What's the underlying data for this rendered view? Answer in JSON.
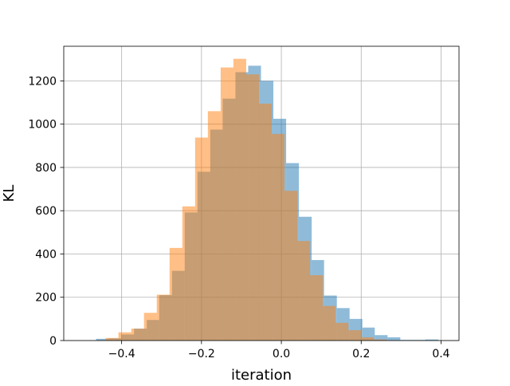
{
  "chart_data": {
    "type": "histogram",
    "title": "",
    "xlabel": "iteration",
    "ylabel": "KL",
    "xlim": [
      -0.545,
      0.445
    ],
    "ylim": [
      0,
      1360
    ],
    "x_ticks": [
      -0.4,
      -0.2,
      0.0,
      0.2,
      0.4
    ],
    "x_tick_labels": [
      "−0.4",
      "−0.2",
      "0.0",
      "0.2",
      "0.4"
    ],
    "y_ticks": [
      0,
      200,
      400,
      600,
      800,
      1000,
      1200
    ],
    "y_tick_labels": [
      "0",
      "200",
      "400",
      "600",
      "800",
      "1000",
      "1200"
    ],
    "grid": true,
    "legend": false,
    "series": [
      {
        "color": "#1f77b4",
        "alpha": 0.5,
        "bins": [
          {
            "x0": -0.464,
            "x1": -0.433,
            "count": 8
          },
          {
            "x0": -0.433,
            "x1": -0.401,
            "count": 10
          },
          {
            "x0": -0.401,
            "x1": -0.369,
            "count": 28
          },
          {
            "x0": -0.369,
            "x1": -0.337,
            "count": 55
          },
          {
            "x0": -0.337,
            "x1": -0.306,
            "count": 95
          },
          {
            "x0": -0.306,
            "x1": -0.274,
            "count": 210
          },
          {
            "x0": -0.274,
            "x1": -0.242,
            "count": 322
          },
          {
            "x0": -0.242,
            "x1": -0.21,
            "count": 592
          },
          {
            "x0": -0.21,
            "x1": -0.178,
            "count": 780
          },
          {
            "x0": -0.178,
            "x1": -0.147,
            "count": 975
          },
          {
            "x0": -0.147,
            "x1": -0.115,
            "count": 1118
          },
          {
            "x0": -0.115,
            "x1": -0.083,
            "count": 1240
          },
          {
            "x0": -0.083,
            "x1": -0.051,
            "count": 1270
          },
          {
            "x0": -0.051,
            "x1": -0.02,
            "count": 1200
          },
          {
            "x0": -0.02,
            "x1": 0.012,
            "count": 1025
          },
          {
            "x0": 0.012,
            "x1": 0.044,
            "count": 820
          },
          {
            "x0": 0.044,
            "x1": 0.076,
            "count": 572
          },
          {
            "x0": 0.076,
            "x1": 0.107,
            "count": 372
          },
          {
            "x0": 0.107,
            "x1": 0.139,
            "count": 208
          },
          {
            "x0": 0.139,
            "x1": 0.171,
            "count": 150
          },
          {
            "x0": 0.171,
            "x1": 0.203,
            "count": 100
          },
          {
            "x0": 0.203,
            "x1": 0.234,
            "count": 60
          },
          {
            "x0": 0.234,
            "x1": 0.266,
            "count": 25
          },
          {
            "x0": 0.266,
            "x1": 0.298,
            "count": 15
          },
          {
            "x0": 0.298,
            "x1": 0.33,
            "count": 3
          },
          {
            "x0": 0.33,
            "x1": 0.361,
            "count": 3
          },
          {
            "x0": 0.361,
            "x1": 0.393,
            "count": 5
          }
        ]
      },
      {
        "color": "#ff7f0e",
        "alpha": 0.5,
        "bins": [
          {
            "x0": -0.44,
            "x1": -0.408,
            "count": 12
          },
          {
            "x0": -0.408,
            "x1": -0.376,
            "count": 38
          },
          {
            "x0": -0.376,
            "x1": -0.344,
            "count": 55
          },
          {
            "x0": -0.344,
            "x1": -0.312,
            "count": 128
          },
          {
            "x0": -0.312,
            "x1": -0.28,
            "count": 212
          },
          {
            "x0": -0.28,
            "x1": -0.248,
            "count": 428
          },
          {
            "x0": -0.248,
            "x1": -0.216,
            "count": 620
          },
          {
            "x0": -0.216,
            "x1": -0.184,
            "count": 938
          },
          {
            "x0": -0.184,
            "x1": -0.152,
            "count": 1060
          },
          {
            "x0": -0.152,
            "x1": -0.12,
            "count": 1262
          },
          {
            "x0": -0.12,
            "x1": -0.088,
            "count": 1302
          },
          {
            "x0": -0.088,
            "x1": -0.056,
            "count": 1230
          },
          {
            "x0": -0.056,
            "x1": -0.024,
            "count": 1095
          },
          {
            "x0": -0.024,
            "x1": 0.008,
            "count": 955
          },
          {
            "x0": 0.008,
            "x1": 0.04,
            "count": 692
          },
          {
            "x0": 0.04,
            "x1": 0.072,
            "count": 460
          },
          {
            "x0": 0.072,
            "x1": 0.104,
            "count": 302
          },
          {
            "x0": 0.104,
            "x1": 0.136,
            "count": 160
          },
          {
            "x0": 0.136,
            "x1": 0.168,
            "count": 82
          },
          {
            "x0": 0.168,
            "x1": 0.2,
            "count": 48
          },
          {
            "x0": 0.2,
            "x1": 0.232,
            "count": 15
          },
          {
            "x0": 0.232,
            "x1": 0.264,
            "count": 5
          }
        ]
      }
    ]
  }
}
